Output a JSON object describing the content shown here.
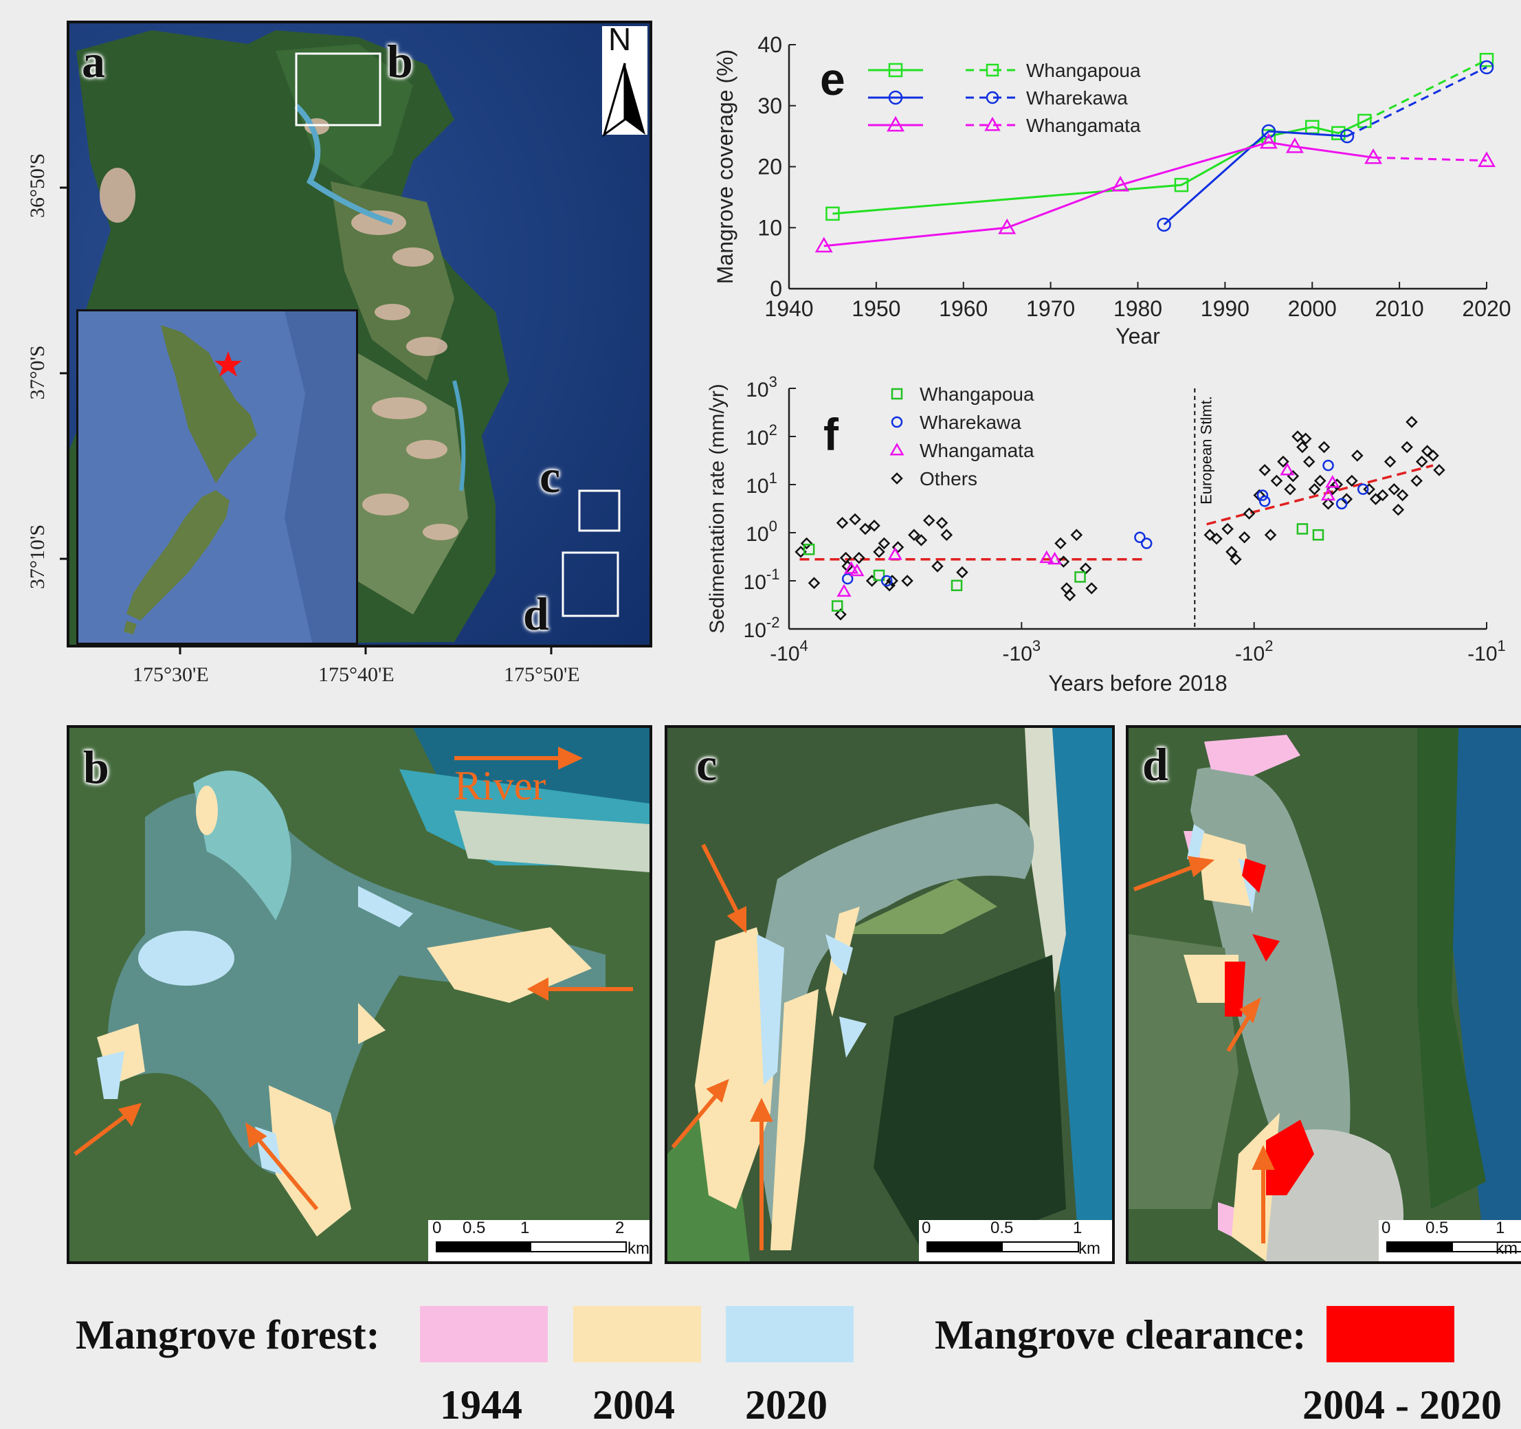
{
  "map_a": {
    "letter": "a",
    "box_labels": [
      "b",
      "c",
      "d"
    ],
    "north": "N",
    "lat_labels": [
      "36°50'S",
      "37°0'S",
      "37°10'S"
    ],
    "lon_labels": [
      "175°30'E",
      "175°40'E",
      "175°50'E"
    ]
  },
  "panel_b": {
    "letter": "b",
    "river_label": "River",
    "scale": [
      "0",
      "0.5",
      "1",
      "2"
    ],
    "unit": "km"
  },
  "panel_c": {
    "letter": "c",
    "scale": [
      "0",
      "0.5",
      "1"
    ],
    "unit": "km"
  },
  "panel_d": {
    "letter": "d",
    "scale": [
      "0",
      "0.5",
      "1"
    ],
    "unit": "km"
  },
  "legend": {
    "forest_label": "Mangrove forest:",
    "clearance_label": "Mangrove clearance:",
    "forest_years": [
      "1944",
      "2004",
      "2020"
    ],
    "clearance_years": "2004 - 2020",
    "colors": {
      "1944": "#f9bde3",
      "2004": "#fbe4b2",
      "2020": "#bfe3f6",
      "clearance": "#ff0000"
    }
  },
  "chart_data": [
    {
      "type": "line",
      "panel": "e",
      "xlabel": "Year",
      "ylabel": "Mangrove coverage (%)",
      "xlim": [
        1940,
        2020
      ],
      "ylim": [
        0,
        40
      ],
      "xticks": [
        1940,
        1950,
        1960,
        1970,
        1980,
        1990,
        2000,
        2010,
        2020
      ],
      "yticks": [
        0,
        10,
        20,
        30,
        40
      ],
      "series": [
        {
          "name": "Whangapoua",
          "color": "#22e022",
          "marker": "square",
          "solid": [
            [
              1945,
              12.3
            ],
            [
              1985,
              17
            ],
            [
              1995,
              25
            ],
            [
              2000,
              26.5
            ],
            [
              2003,
              25.5
            ],
            [
              2006,
              27.5
            ]
          ],
          "dashed": [
            [
              2006,
              27.5
            ],
            [
              2020,
              37.5
            ]
          ]
        },
        {
          "name": "Wharekawa",
          "color": "#1030e0",
          "marker": "circle",
          "solid": [
            [
              1983,
              10.5
            ],
            [
              1995,
              25.8
            ],
            [
              2004,
              25
            ]
          ],
          "dashed": [
            [
              2004,
              25
            ],
            [
              2020,
              36.3
            ]
          ]
        },
        {
          "name": "Whangamata",
          "color": "#ee10ee",
          "marker": "triangle",
          "solid": [
            [
              1944,
              7
            ],
            [
              1965,
              10
            ],
            [
              1978,
              17
            ],
            [
              1995,
              24
            ],
            [
              1998,
              23.3
            ],
            [
              2007,
              21.5
            ]
          ],
          "dashed": [
            [
              2007,
              21.5
            ],
            [
              2020,
              21
            ]
          ]
        }
      ]
    },
    {
      "type": "scatter",
      "panel": "f",
      "xlabel": "Years before 2018",
      "ylabel": "Sedimentation rate (mm/yr)",
      "xscale": "symlog-negative",
      "yscale": "log",
      "xticks": [
        "-10^4",
        "-10^3",
        "-10^2",
        "-10^1"
      ],
      "yticks": [
        "10^-2",
        "10^-1",
        "10^0",
        "10^1",
        "10^2",
        "10^3"
      ],
      "annotation": "European Stlmt.",
      "series": [
        {
          "name": "Whangapoua",
          "color": "#22c022",
          "marker": "square",
          "points": [
            [
              8200,
              0.45
            ],
            [
              6200,
              0.03
            ],
            [
              4100,
              0.13
            ],
            [
              1900,
              0.08
            ],
            [
              560,
              0.12
            ],
            [
              62,
              1.2
            ],
            [
              53,
              0.9
            ]
          ]
        },
        {
          "name": "Wharekawa",
          "color": "#1030e0",
          "marker": "circle",
          "points": [
            [
              5600,
              0.11
            ],
            [
              3800,
              0.1
            ],
            [
              310,
              0.8
            ],
            [
              290,
              0.6
            ],
            [
              92,
              6
            ],
            [
              90,
              4.5
            ],
            [
              48,
              25
            ],
            [
              42,
              4
            ],
            [
              34,
              8
            ]
          ]
        },
        {
          "name": "Whangamata",
          "color": "#ee10ee",
          "marker": "triangle",
          "points": [
            [
              5800,
              0.06
            ],
            [
              5400,
              0.18
            ],
            [
              5100,
              0.16
            ],
            [
              3500,
              0.35
            ],
            [
              780,
              0.3
            ],
            [
              720,
              0.28
            ],
            [
              72,
              20
            ],
            [
              48,
              6
            ],
            [
              46,
              11
            ]
          ]
        },
        {
          "name": "Others",
          "color": "#111111",
          "marker": "diamond",
          "points": [
            [
              8900,
              0.4
            ],
            [
              8400,
              0.6
            ],
            [
              7800,
              0.09
            ],
            [
              5900,
              1.6
            ],
            [
              5700,
              0.3
            ],
            [
              5600,
              0.2
            ],
            [
              5200,
              1.9
            ],
            [
              5000,
              0.3
            ],
            [
              4700,
              1.2
            ],
            [
              4400,
              0.1
            ],
            [
              4300,
              1.4
            ],
            [
              4100,
              0.4
            ],
            [
              3900,
              0.6
            ],
            [
              3700,
              0.08
            ],
            [
              3600,
              0.1
            ],
            [
              3400,
              0.5
            ],
            [
              3100,
              0.1
            ],
            [
              2900,
              0.9
            ],
            [
              2700,
              0.7
            ],
            [
              2500,
              1.8
            ],
            [
              2300,
              0.2
            ],
            [
              2200,
              1.6
            ],
            [
              2100,
              0.9
            ],
            [
              1800,
              0.15
            ],
            [
              680,
              0.6
            ],
            [
              660,
              0.25
            ],
            [
              640,
              0.07
            ],
            [
              620,
              0.05
            ],
            [
              580,
              0.9
            ],
            [
              530,
              0.18
            ],
            [
              500,
              0.07
            ],
            [
              6000,
              0.02
            ],
            [
              155,
              0.9
            ],
            [
              145,
              0.75
            ],
            [
              130,
              1.2
            ],
            [
              125,
              0.4
            ],
            [
              120,
              0.28
            ],
            [
              110,
              0.8
            ],
            [
              105,
              2.5
            ],
            [
              95,
              6
            ],
            [
              90,
              20
            ],
            [
              85,
              0.9
            ],
            [
              80,
              12
            ],
            [
              75,
              30
            ],
            [
              70,
              8
            ],
            [
              68,
              15
            ],
            [
              65,
              100
            ],
            [
              62,
              60
            ],
            [
              60,
              90
            ],
            [
              58,
              30
            ],
            [
              55,
              8
            ],
            [
              52,
              12
            ],
            [
              50,
              60
            ],
            [
              48,
              4
            ],
            [
              46,
              8
            ],
            [
              44,
              10
            ],
            [
              40,
              5
            ],
            [
              38,
              12
            ],
            [
              36,
              40
            ],
            [
              32,
              8
            ],
            [
              30,
              5
            ],
            [
              28,
              6
            ],
            [
              26,
              30
            ],
            [
              25,
              8
            ],
            [
              24,
              3
            ],
            [
              23,
              6
            ],
            [
              22,
              60
            ],
            [
              21,
              200
            ],
            [
              20,
              12
            ],
            [
              19,
              30
            ],
            [
              18,
              50
            ],
            [
              17,
              40
            ],
            [
              16,
              20
            ]
          ]
        }
      ],
      "fit_pre": {
        "x": [
          9000,
          300
        ],
        "y": 0.28
      },
      "fit_post": {
        "x": [
          160,
          17
        ],
        "y": [
          1.5,
          25
        ]
      }
    }
  ]
}
